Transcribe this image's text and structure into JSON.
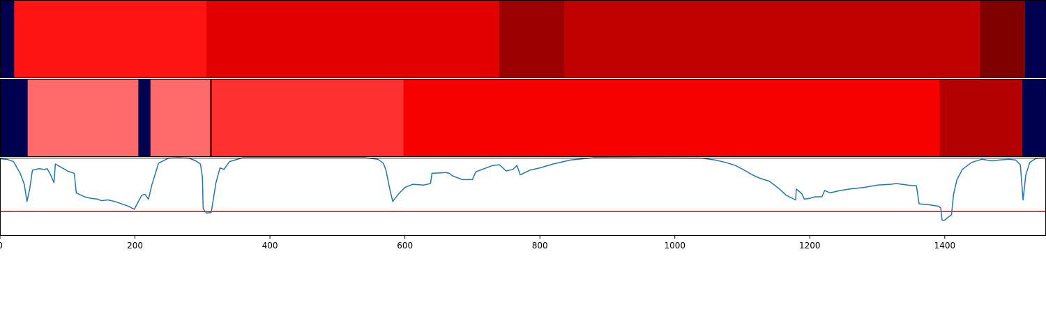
{
  "chart_data": [
    {
      "type": "heatmap",
      "panel": "top-band",
      "x_range": [
        0,
        1550
      ],
      "segments": [
        {
          "start": 0,
          "end": 21,
          "color": "#000050"
        },
        {
          "start": 21,
          "end": 306,
          "color": "#ff1414"
        },
        {
          "start": 306,
          "end": 740,
          "color": "#e30000"
        },
        {
          "start": 740,
          "end": 836,
          "color": "#9c0000"
        },
        {
          "start": 836,
          "end": 1452,
          "color": "#c10000"
        },
        {
          "start": 1452,
          "end": 1519,
          "color": "#800000"
        },
        {
          "start": 1519,
          "end": 1550,
          "color": "#000050"
        }
      ]
    },
    {
      "type": "heatmap",
      "panel": "middle-band",
      "x_range": [
        0,
        1550
      ],
      "segments": [
        {
          "start": 0,
          "end": 41,
          "color": "#000050"
        },
        {
          "start": 41,
          "end": 205,
          "color": "#ff6a6a"
        },
        {
          "start": 205,
          "end": 223,
          "color": "#000050"
        },
        {
          "start": 223,
          "end": 311,
          "color": "#ff6a6a"
        },
        {
          "start": 311,
          "end": 314,
          "color": "#7a0000"
        },
        {
          "start": 314,
          "end": 598,
          "color": "#ff3030"
        },
        {
          "start": 598,
          "end": 1392,
          "color": "#f70000"
        },
        {
          "start": 1392,
          "end": 1515,
          "color": "#b30000"
        },
        {
          "start": 1515,
          "end": 1550,
          "color": "#000050"
        }
      ]
    },
    {
      "type": "line",
      "panel": "signal",
      "xlim": [
        0,
        1550
      ],
      "ylim": [
        0,
        1
      ],
      "x_ticks": [
        0,
        200,
        400,
        600,
        800,
        1000,
        1200,
        1400
      ],
      "x_tick_labels": [
        "0",
        "200",
        "400",
        "600",
        "800",
        "1000",
        "1200",
        "1400"
      ],
      "threshold": {
        "y": 0.31,
        "color": "#ff0000"
      },
      "series": [
        {
          "color": "#1f77b4",
          "points": [
            [
              0,
              0.985
            ],
            [
              10,
              0.98
            ],
            [
              20,
              0.95
            ],
            [
              30,
              0.8
            ],
            [
              36,
              0.66
            ],
            [
              40,
              0.44
            ],
            [
              44,
              0.6
            ],
            [
              48,
              0.84
            ],
            [
              58,
              0.86
            ],
            [
              66,
              0.85
            ],
            [
              70,
              0.86
            ],
            [
              75,
              0.78
            ],
            [
              80,
              0.68
            ],
            [
              82,
              0.92
            ],
            [
              90,
              0.88
            ],
            [
              100,
              0.83
            ],
            [
              110,
              0.8
            ],
            [
              113,
              0.55
            ],
            [
              125,
              0.5
            ],
            [
              135,
              0.48
            ],
            [
              145,
              0.47
            ],
            [
              150,
              0.45
            ],
            [
              160,
              0.46
            ],
            [
              170,
              0.44
            ],
            [
              180,
              0.41
            ],
            [
              190,
              0.38
            ],
            [
              199,
              0.34
            ],
            [
              210,
              0.52
            ],
            [
              215,
              0.53
            ],
            [
              220,
              0.47
            ],
            [
              225,
              0.65
            ],
            [
              235,
              0.93
            ],
            [
              250,
              0.995
            ],
            [
              265,
              1.0
            ],
            [
              280,
              0.995
            ],
            [
              290,
              0.96
            ],
            [
              297,
              0.92
            ],
            [
              300,
              0.75
            ],
            [
              301,
              0.35
            ],
            [
              306,
              0.29
            ],
            [
              313,
              0.3
            ],
            [
              320,
              0.68
            ],
            [
              326,
              0.87
            ],
            [
              332,
              0.85
            ],
            [
              340,
              0.95
            ],
            [
              360,
              1.0
            ],
            [
              500,
              1.0
            ],
            [
              540,
              1.0
            ],
            [
              560,
              0.98
            ],
            [
              568,
              0.93
            ],
            [
              572,
              0.84
            ],
            [
              578,
              0.58
            ],
            [
              582,
              0.44
            ],
            [
              590,
              0.53
            ],
            [
              600,
              0.62
            ],
            [
              612,
              0.66
            ],
            [
              628,
              0.65
            ],
            [
              638,
              0.67
            ],
            [
              640,
              0.8
            ],
            [
              660,
              0.81
            ],
            [
              666,
              0.8
            ],
            [
              670,
              0.77
            ],
            [
              685,
              0.72
            ],
            [
              700,
              0.72
            ],
            [
              705,
              0.82
            ],
            [
              730,
              0.9
            ],
            [
              740,
              0.91
            ],
            [
              750,
              0.83
            ],
            [
              760,
              0.85
            ],
            [
              766,
              0.9
            ],
            [
              771,
              0.78
            ],
            [
              785,
              0.84
            ],
            [
              800,
              0.87
            ],
            [
              820,
              0.92
            ],
            [
              845,
              0.97
            ],
            [
              880,
              1.0
            ],
            [
              1040,
              0.995
            ],
            [
              1060,
              0.97
            ],
            [
              1075,
              0.94
            ],
            [
              1090,
              0.9
            ],
            [
              1105,
              0.83
            ],
            [
              1115,
              0.78
            ],
            [
              1125,
              0.74
            ],
            [
              1140,
              0.7
            ],
            [
              1155,
              0.6
            ],
            [
              1165,
              0.52
            ],
            [
              1179,
              0.46
            ],
            [
              1180,
              0.6
            ],
            [
              1188,
              0.54
            ],
            [
              1192,
              0.47
            ],
            [
              1200,
              0.48
            ],
            [
              1208,
              0.5
            ],
            [
              1218,
              0.5
            ],
            [
              1222,
              0.58
            ],
            [
              1230,
              0.55
            ],
            [
              1245,
              0.58
            ],
            [
              1260,
              0.6
            ],
            [
              1280,
              0.62
            ],
            [
              1300,
              0.65
            ],
            [
              1320,
              0.66
            ],
            [
              1328,
              0.67
            ],
            [
              1345,
              0.65
            ],
            [
              1358,
              0.64
            ],
            [
              1362,
              0.41
            ],
            [
              1375,
              0.4
            ],
            [
              1390,
              0.38
            ],
            [
              1394,
              0.36
            ],
            [
              1396,
              0.2
            ],
            [
              1400,
              0.2
            ],
            [
              1405,
              0.24
            ],
            [
              1410,
              0.27
            ],
            [
              1413,
              0.53
            ],
            [
              1418,
              0.72
            ],
            [
              1426,
              0.85
            ],
            [
              1440,
              0.94
            ],
            [
              1455,
              0.98
            ],
            [
              1470,
              0.96
            ],
            [
              1480,
              0.97
            ],
            [
              1495,
              0.98
            ],
            [
              1505,
              0.97
            ],
            [
              1512,
              0.91
            ],
            [
              1516,
              0.46
            ],
            [
              1520,
              0.78
            ],
            [
              1526,
              0.94
            ],
            [
              1535,
              0.99
            ],
            [
              1550,
              1.0
            ]
          ]
        }
      ]
    }
  ]
}
